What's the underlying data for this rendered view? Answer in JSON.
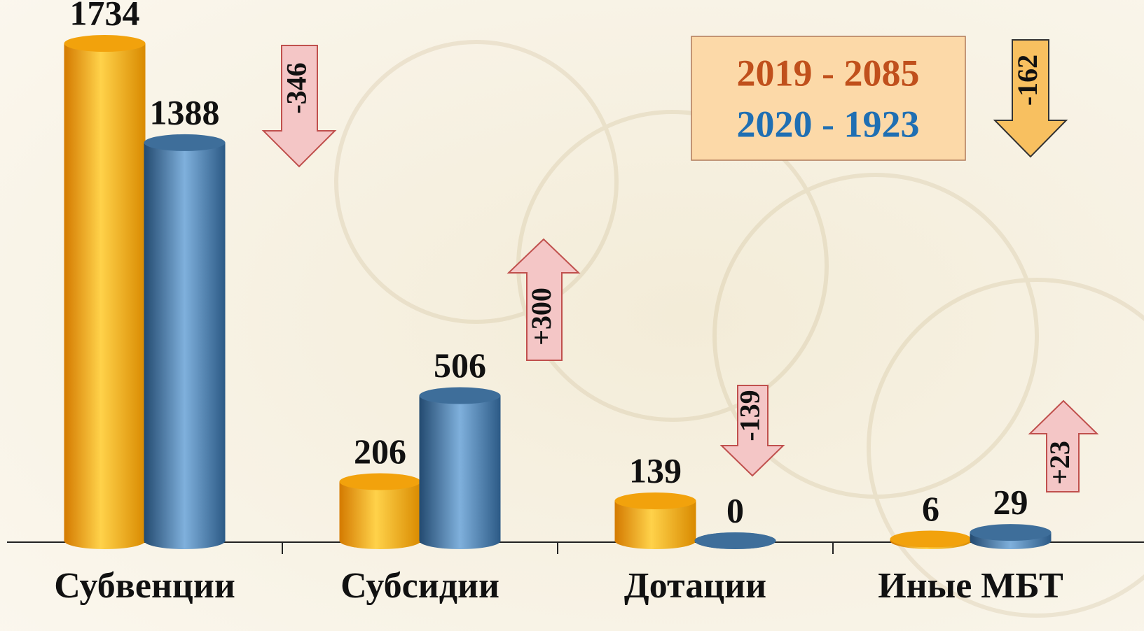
{
  "chart_data": {
    "type": "bar",
    "categories": [
      "Субвенции",
      "Субсидии",
      "Дотации",
      "Иные МБТ"
    ],
    "series": [
      {
        "name": "2019 - 2085",
        "color": "#f2a20c",
        "values": [
          1734,
          206,
          139,
          6
        ]
      },
      {
        "name": "2020 - 1923",
        "color": "#3e6e9a",
        "values": [
          1388,
          506,
          0,
          29
        ]
      }
    ],
    "legend_colors": [
      "#c0501c",
      "#1f6fb3"
    ],
    "annotations": [
      {
        "text": "-346",
        "direction": "down"
      },
      {
        "text": "+300",
        "direction": "up"
      },
      {
        "text": "-139",
        "direction": "down"
      },
      {
        "text": "+23",
        "direction": "up"
      },
      {
        "text": "-162",
        "direction": "down"
      }
    ]
  }
}
